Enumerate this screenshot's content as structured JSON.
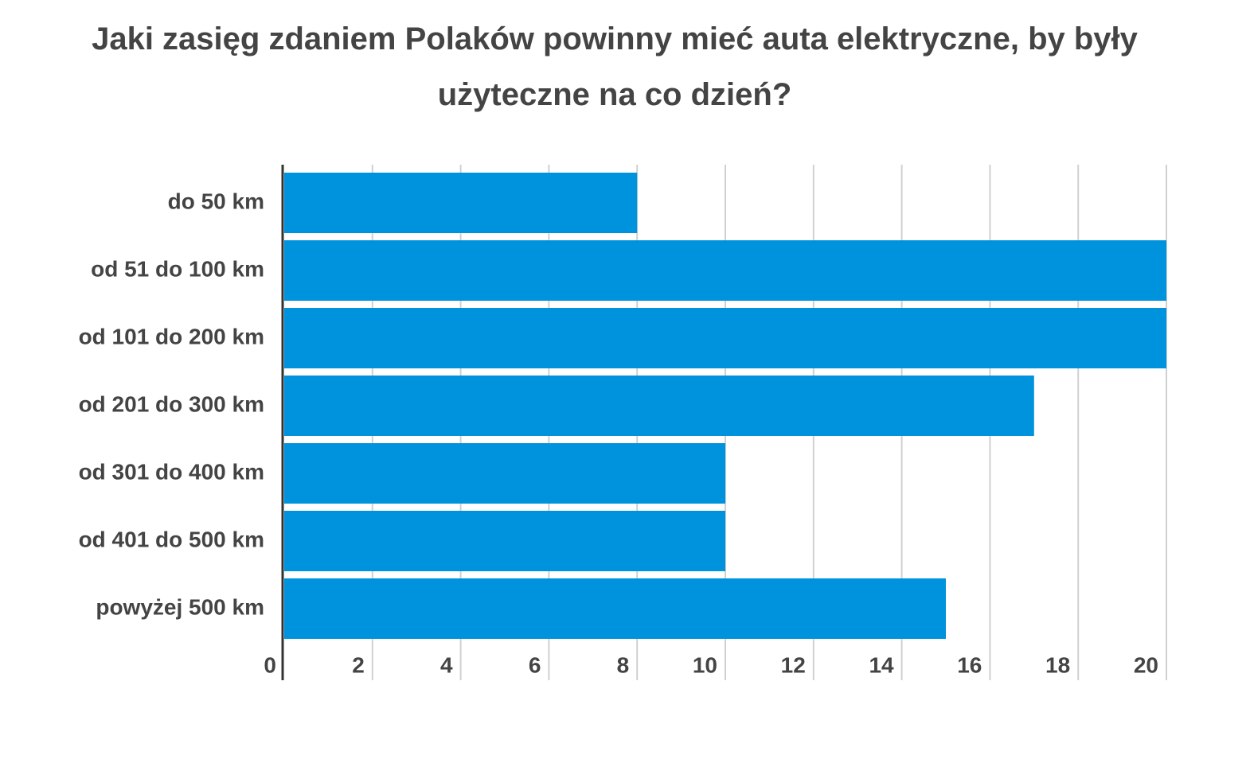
{
  "chart_data": {
    "type": "hbar",
    "title": "Jaki zasięg zdaniem Polaków powinny mieć auta elektryczne, by były użyteczne na co dzień?",
    "categories": [
      "do 50 km",
      "od 51 do 100 km",
      "od 101 do 200 km",
      "od 201 do 300 km",
      "od 301 do 400 km",
      "od 401 do 500 km",
      "powyżej 500 km"
    ],
    "values": [
      8,
      20,
      20,
      17,
      10,
      10,
      15
    ],
    "color": "#0093dd",
    "xlim": [
      0,
      20
    ],
    "xticks": [
      0,
      2,
      4,
      6,
      8,
      10,
      12,
      14,
      16,
      18,
      20
    ],
    "grid": true
  }
}
